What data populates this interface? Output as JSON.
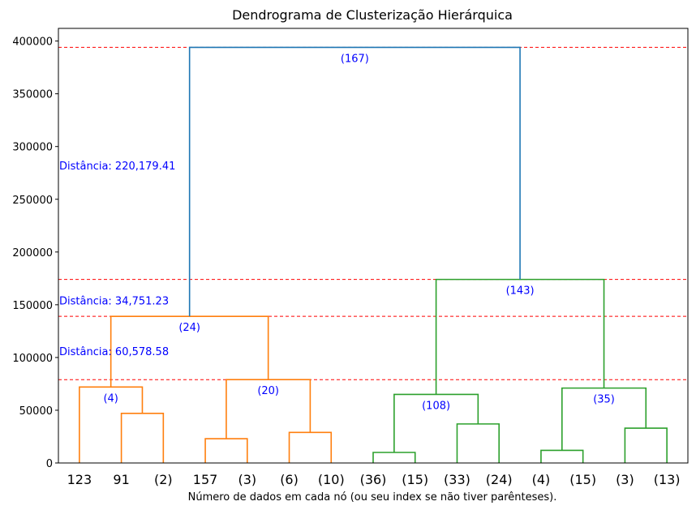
{
  "chart_data": {
    "type": "dendrogram",
    "title": "Dendrograma de Clusterização Hierárquica",
    "xlabel": "Número de dados em cada nó (ou seu index se não tiver parênteses).",
    "ylabel": "",
    "ylim": [
      0,
      412000
    ],
    "yticks": [
      0,
      50000,
      100000,
      150000,
      200000,
      250000,
      300000,
      350000,
      400000
    ],
    "ytick_labels": [
      "0",
      "50000",
      "100000",
      "150000",
      "200000",
      "250000",
      "300000",
      "350000",
      "400000"
    ],
    "leaf_labels": [
      "123",
      "91",
      "(2)",
      "157",
      "(3)",
      "(6)",
      "(10)",
      "(36)",
      "(15)",
      "(33)",
      "(24)",
      "(4)",
      "(15)",
      "(3)",
      "(13)"
    ],
    "colors": {
      "orange": "#ff7f0e",
      "green": "#2ca02c",
      "blue": "#1f77b4",
      "cut": "#ff0000",
      "annot": "#0000ff"
    },
    "links": [
      {
        "left": 1,
        "right": 2,
        "height": 47000,
        "color": "#ff7f0e"
      },
      {
        "left": 0,
        "right": 1.5,
        "height": 72000,
        "color": "#ff7f0e",
        "label": "(4)"
      },
      {
        "left": 3,
        "right": 4,
        "height": 23000,
        "color": "#ff7f0e"
      },
      {
        "left": 5,
        "right": 6,
        "height": 29000,
        "color": "#ff7f0e"
      },
      {
        "left": 3.5,
        "right": 5.5,
        "height": 79000,
        "color": "#ff7f0e",
        "label": "(20)"
      },
      {
        "left": 0.75,
        "right": 4.5,
        "height": 139000,
        "color": "#ff7f0e",
        "label": "(24)"
      },
      {
        "left": 7,
        "right": 8,
        "height": 10000,
        "color": "#2ca02c"
      },
      {
        "left": 9,
        "right": 10,
        "height": 37000,
        "color": "#2ca02c"
      },
      {
        "left": 7.5,
        "right": 9.5,
        "height": 65000,
        "color": "#2ca02c",
        "label": "(108)"
      },
      {
        "left": 11,
        "right": 12,
        "height": 12000,
        "color": "#2ca02c"
      },
      {
        "left": 13,
        "right": 14,
        "height": 33000,
        "color": "#2ca02c"
      },
      {
        "left": 11.5,
        "right": 13.5,
        "height": 71000,
        "color": "#2ca02c",
        "label": "(35)"
      },
      {
        "left": 8.5,
        "right": 12.5,
        "height": 174000,
        "color": "#2ca02c",
        "label": "(143)"
      },
      {
        "left": 2.625,
        "right": 10.5,
        "height": 394000,
        "color": "#1f77b4",
        "label": "(167)"
      }
    ],
    "cut_lines": [
      394000,
      174000,
      139000,
      79000
    ],
    "annotations": [
      {
        "text": "Distância: 220,179.41",
        "y": 282000
      },
      {
        "text": "Distância: 34,751.23",
        "y": 154000
      },
      {
        "text": "Distância: 60,578.58",
        "y": 106000
      }
    ]
  }
}
